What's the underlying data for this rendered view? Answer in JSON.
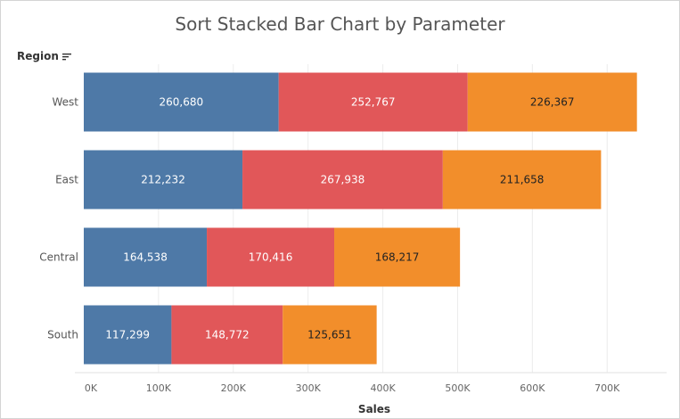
{
  "header": {
    "region_label": "Region",
    "sort_icon": "sort-descending-icon"
  },
  "chart_data": {
    "type": "bar",
    "orientation": "horizontal",
    "stacked": true,
    "title": "Sort Stacked Bar Chart by Parameter",
    "xlabel": "Sales",
    "ylabel": "Region",
    "categories": [
      "West",
      "East",
      "Central",
      "South"
    ],
    "series": [
      {
        "values": [
          260680,
          212232,
          164538,
          117299
        ],
        "color": "#4e79a7"
      },
      {
        "values": [
          252767,
          267938,
          170416,
          148772
        ],
        "color": "#e15759"
      },
      {
        "values": [
          226367,
          211658,
          168217,
          125651
        ],
        "color": "#f28e2b"
      }
    ],
    "data_labels": [
      [
        "260,680",
        "252,767",
        "226,367"
      ],
      [
        "212,232",
        "267,938",
        "211,658"
      ],
      [
        "164,538",
        "170,416",
        "168,217"
      ],
      [
        "117,299",
        "148,772",
        "125,651"
      ]
    ],
    "label_colors": [
      "#ffffff",
      "#ffffff",
      "#222222"
    ],
    "xlim": [
      0,
      770000
    ],
    "xticks": [
      0,
      100000,
      200000,
      300000,
      400000,
      500000,
      600000,
      700000
    ],
    "xtick_labels": [
      "0K",
      "100K",
      "200K",
      "300K",
      "400K",
      "500K",
      "600K",
      "700K"
    ],
    "grid": true,
    "legend": "none"
  }
}
